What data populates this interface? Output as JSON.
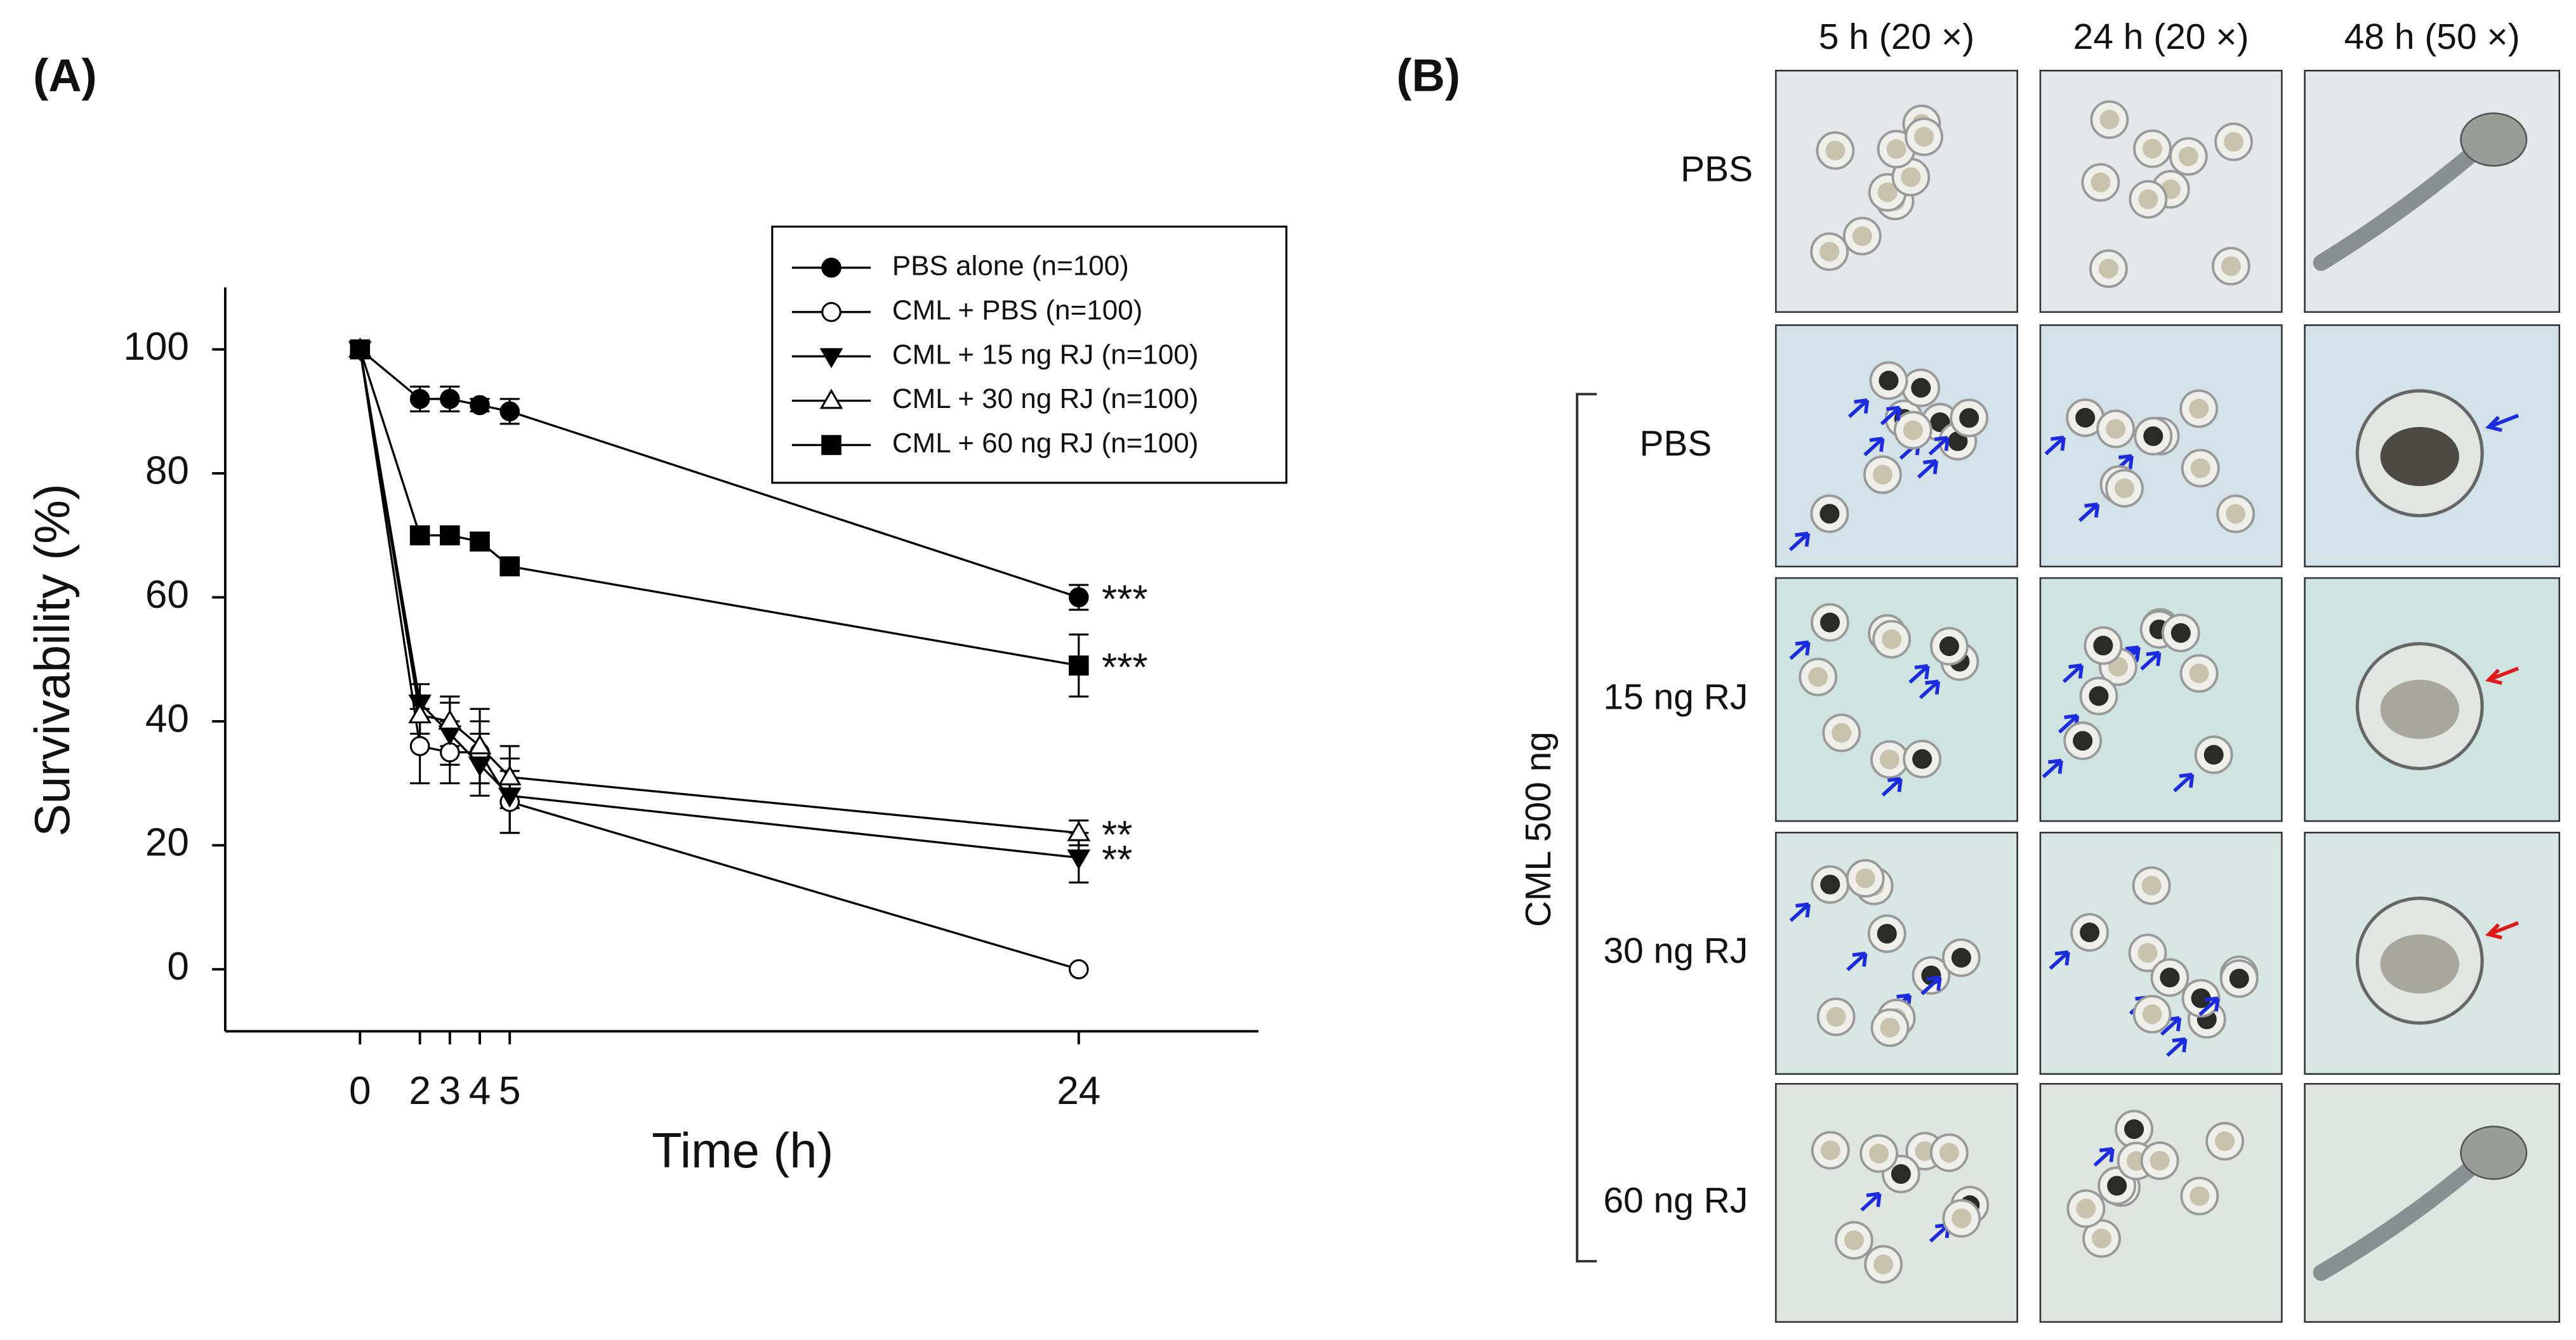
{
  "chart_data": {
    "type": "line",
    "panel_label": "(A)",
    "xlabel": "Time (h)",
    "ylabel": "Survivability (%)",
    "x": [
      0,
      2,
      3,
      4,
      5,
      24
    ],
    "xlim": [
      -4.5,
      30
    ],
    "xticks": [
      0,
      2,
      3,
      4,
      5,
      24
    ],
    "ylim": [
      -10,
      110
    ],
    "yticks": [
      0,
      20,
      40,
      60,
      80,
      100
    ],
    "legend": "upper right",
    "series": [
      {
        "name": "PBS alone (n=100)",
        "color": "#000000",
        "marker": "circle",
        "filled": true,
        "values": [
          100,
          92,
          92,
          91,
          90,
          60
        ],
        "errors": [
          0,
          2,
          2,
          1,
          2,
          2
        ],
        "annotation": "***"
      },
      {
        "name": "CML + PBS (n=100)",
        "color": "#000000",
        "marker": "circle",
        "filled": false,
        "values": [
          100,
          36,
          35,
          35,
          27,
          0
        ],
        "errors": [
          0,
          6,
          5,
          5,
          5,
          0
        ]
      },
      {
        "name": "CML + 15 ng RJ (n=100)",
        "color": "#000000",
        "marker": "triangle-down",
        "filled": true,
        "values": [
          100,
          43,
          38,
          33,
          28,
          18
        ],
        "errors": [
          0,
          3,
          5,
          5,
          6,
          4
        ],
        "annotation": "**"
      },
      {
        "name": "CML + 30 ng RJ (n=100)",
        "color": "#000000",
        "marker": "triangle-up",
        "filled": false,
        "values": [
          100,
          41,
          40,
          36,
          31,
          22
        ],
        "errors": [
          0,
          3,
          4,
          6,
          5,
          2
        ],
        "annotation": "**"
      },
      {
        "name": "CML + 60 ng RJ (n=100)",
        "color": "#000000",
        "marker": "square",
        "filled": true,
        "values": [
          100,
          70,
          70,
          69,
          65,
          49
        ],
        "errors": [
          0,
          1,
          1,
          1,
          1,
          5
        ],
        "annotation": "***"
      }
    ]
  },
  "panel_b": {
    "label": "(B)",
    "columns": [
      "5 h (20 ×)",
      "24 h (20 ×)",
      "48 h (50 ×)"
    ],
    "rows": [
      "PBS",
      "PBS",
      "15 ng RJ",
      "30 ng RJ",
      "60 ng RJ"
    ],
    "group_label": "CML 500 ng"
  }
}
